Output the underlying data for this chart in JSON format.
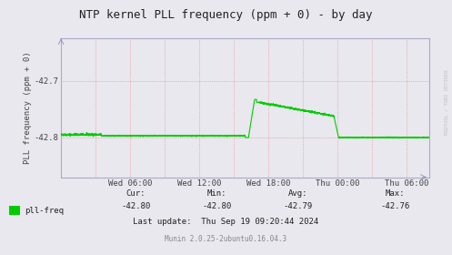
{
  "title": "NTP kernel PLL frequency (ppm + 0) - by day",
  "ylabel": "PLL frequency (ppm + 0)",
  "bg_color": "#e8e8ee",
  "plot_bg_color": "#e8e8ee",
  "line_color": "#00cc00",
  "grid_color": "#dd8888",
  "yticks": [
    -42.7,
    -42.8
  ],
  "ylim": [
    -42.87,
    -42.625
  ],
  "xtick_labels": [
    "Wed 06:00",
    "Wed 12:00",
    "Wed 18:00",
    "Thu 00:00",
    "Thu 06:00"
  ],
  "legend_label": "pll-freq",
  "legend_color": "#00cc00",
  "cur_val": "-42.80",
  "min_val": "-42.80",
  "avg_val": "-42.79",
  "max_val": "-42.76",
  "footer": "Munin 2.0.25-2ubuntu0.16.04.3",
  "last_update": "Last update:  Thu Sep 19 09:20:44 2024",
  "watermark": "RRDTOOL / TOBI OETIKER",
  "title_fontsize": 9,
  "label_fontsize": 6.5,
  "tick_fontsize": 6.5,
  "footer_fontsize": 5.5,
  "stats_fontsize": 6.5
}
